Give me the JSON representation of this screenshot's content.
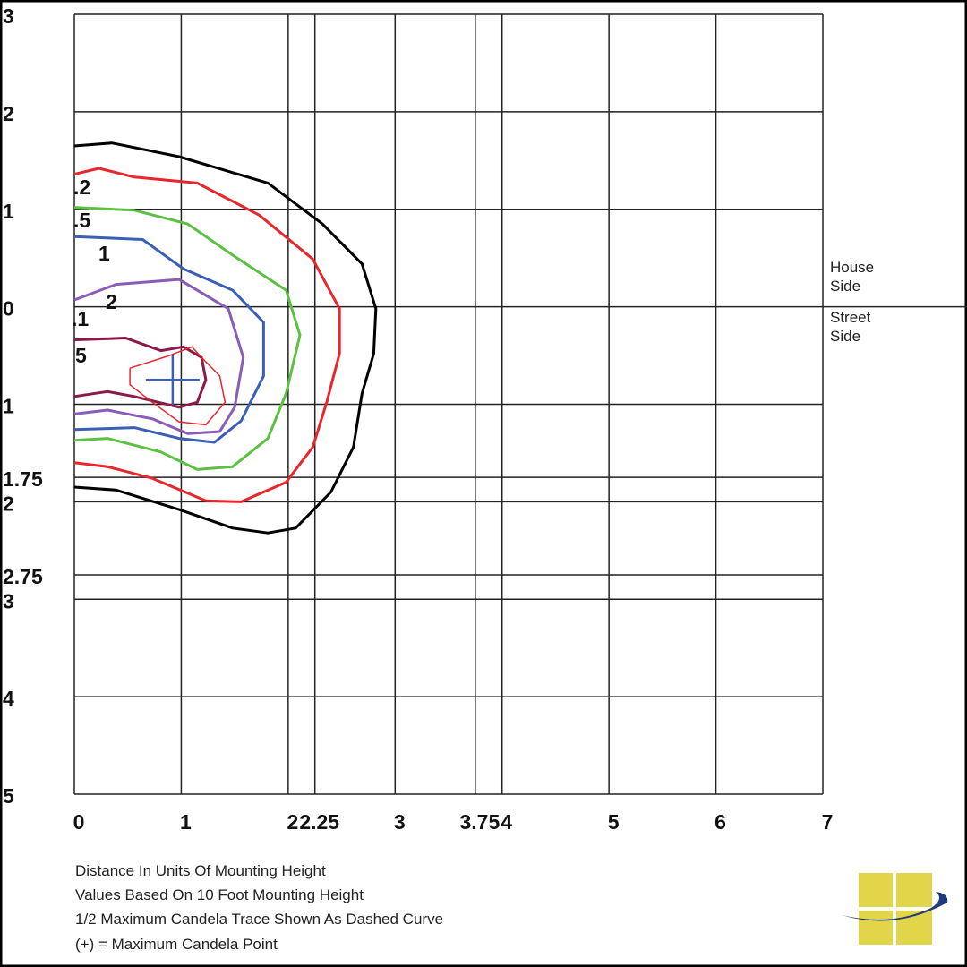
{
  "chart_data": {
    "type": "contour",
    "xlim": [
      0,
      7
    ],
    "ylim": [
      -5,
      3
    ],
    "xticks": [
      0,
      1,
      2,
      2.25,
      3,
      3.75,
      4,
      5,
      6,
      7
    ],
    "yticks": [
      3,
      2,
      1,
      0,
      {
        "value": -1,
        "label": "1"
      },
      {
        "value": -1.75,
        "label": "1.75"
      },
      {
        "value": -2,
        "label": "2"
      },
      {
        "value": -2.75,
        "label": "2.75"
      },
      {
        "value": -3,
        "label": "3"
      },
      {
        "value": -4,
        "label": "4"
      },
      {
        "value": -5,
        "label": "5"
      }
    ],
    "grid": true,
    "series": [
      {
        "color": "#000000",
        "x": [
          0,
          0.35,
          0.98,
          1.81,
          2.32,
          2.69,
          2.82,
          2.8,
          2.69,
          2.61,
          2.4,
          2.07,
          1.81,
          1.48,
          0.98,
          0.39,
          0
        ],
        "values": [
          1.65,
          1.68,
          1.54,
          1.27,
          0.85,
          0.44,
          -0.02,
          -0.48,
          -0.89,
          -1.44,
          -1.9,
          -2.27,
          -2.32,
          -2.27,
          -2.08,
          -1.88,
          -1.85
        ]
      },
      {
        "color": "#e8262c",
        "x": [
          0,
          0.23,
          0.56,
          1.15,
          1.73,
          2.23,
          2.48,
          2.48,
          2.36,
          2.23,
          1.98,
          1.56,
          1.23,
          0.73,
          0.31,
          0
        ],
        "values": [
          1.36,
          1.42,
          1.33,
          1.27,
          0.94,
          0.49,
          -0.02,
          -0.48,
          -0.98,
          -1.44,
          -1.8,
          -2.0,
          -1.99,
          -1.76,
          -1.64,
          -1.6
        ]
      },
      {
        "color": "#5cc142",
        "x": [
          0,
          0.56,
          1.06,
          1.48,
          1.98,
          2.11,
          1.98,
          1.81,
          1.48,
          1.15,
          0.81,
          0.31,
          0
        ],
        "values": [
          1.02,
          0.99,
          0.85,
          0.53,
          0.17,
          -0.29,
          -0.89,
          -1.35,
          -1.64,
          -1.67,
          -1.49,
          -1.35,
          -1.37
        ]
      },
      {
        "color": "#3a5fb5",
        "x": [
          0,
          0.64,
          1.02,
          1.48,
          1.77,
          1.77,
          1.56,
          1.31,
          0.98,
          0.56,
          0
        ],
        "values": [
          0.72,
          0.69,
          0.39,
          0.17,
          -0.16,
          -0.71,
          -1.17,
          -1.39,
          -1.35,
          -1.24,
          -1.26
        ]
      },
      {
        "color": "#8a5cb8",
        "x": [
          0,
          0.39,
          0.98,
          1.44,
          1.58,
          1.5,
          1.36,
          1.06,
          0.73,
          0.31,
          0
        ],
        "values": [
          0.07,
          0.23,
          0.28,
          -0.02,
          -0.52,
          -1.03,
          -1.28,
          -1.3,
          -1.15,
          -1.06,
          -1.1
        ]
      },
      {
        "color": "#8b1a4a",
        "x": [
          0,
          0.48,
          0.81,
          1.02,
          1.19,
          1.23,
          1.15,
          0.98,
          0.56,
          0.31,
          0
        ],
        "values": [
          -0.34,
          -0.32,
          -0.45,
          -0.41,
          -0.52,
          -0.75,
          -0.98,
          -1.03,
          -0.92,
          -0.87,
          -0.92
        ]
      },
      {
        "color": "#e8262c",
        "thin": true,
        "x": [
          0.52,
          0.89,
          1.1,
          1.19,
          1.36,
          1.41,
          1.23,
          0.98,
          0.73,
          0.52,
          0.52
        ],
        "values": [
          -0.63,
          -0.5,
          -0.41,
          -0.52,
          -0.71,
          -0.98,
          -1.21,
          -1.18,
          -0.98,
          -0.8,
          -0.63
        ]
      }
    ],
    "max_point": {
      "x": 0.92,
      "y": -0.75,
      "color": "#3a5fb5"
    },
    "contour_labels": [
      ".2",
      ".5",
      "1",
      "2",
      ".1",
      "5"
    ],
    "house_side": [
      "House",
      "Side"
    ],
    "street_side": [
      "Street",
      "Side"
    ],
    "notes": [
      "Distance In Units Of Mounting Height",
      "Values Based On 10 Foot Mounting Height",
      "1/2 Maximum Candela Trace Shown As Dashed Curve",
      "(+) = Maximum Candela Point"
    ]
  }
}
